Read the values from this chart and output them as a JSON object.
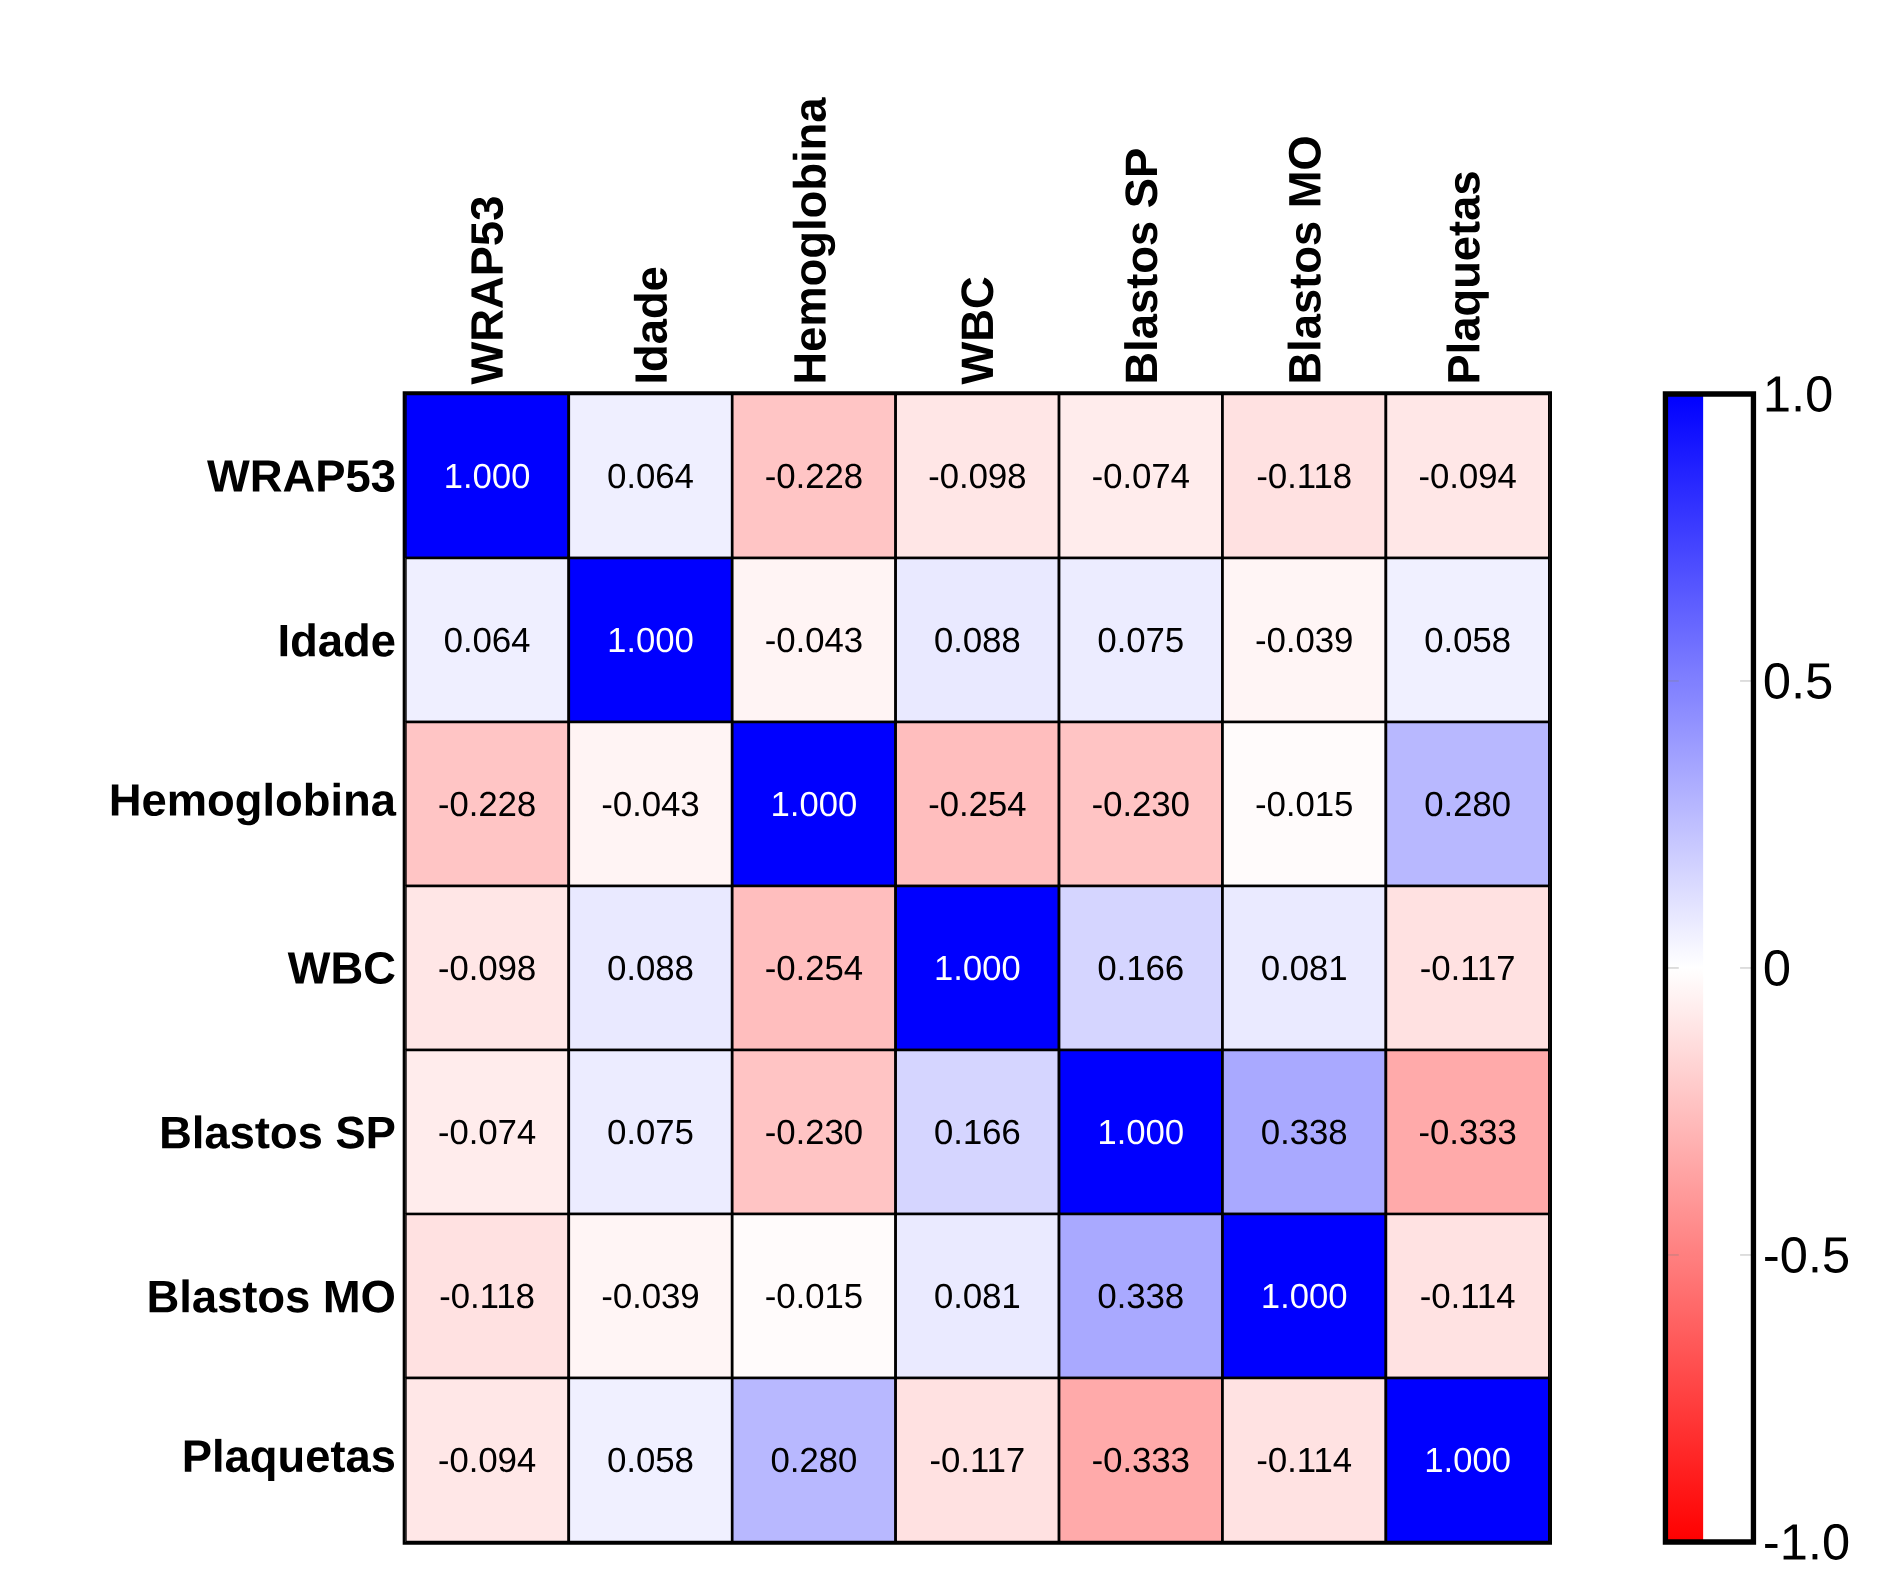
{
  "chart_data": {
    "type": "heatmap",
    "categories": [
      "WRAP53",
      "Idade",
      "Hemoglobina",
      "WBC",
      "Blastos SP",
      "Blastos MO",
      "Plaquetas"
    ],
    "y_categories": [
      "WRAP53",
      "Idade",
      "Hemoglobina",
      "WBC",
      "Blastos SP",
      "Blastos MO",
      "Plaquetas"
    ],
    "cells": [
      [
        1.0,
        0.064,
        -0.228,
        -0.098,
        -0.074,
        -0.118,
        -0.094
      ],
      [
        0.064,
        1.0,
        -0.043,
        0.088,
        0.075,
        -0.039,
        0.058
      ],
      [
        -0.228,
        -0.043,
        1.0,
        -0.254,
        -0.23,
        -0.015,
        0.28
      ],
      [
        -0.098,
        0.088,
        -0.254,
        1.0,
        0.166,
        0.081,
        -0.117
      ],
      [
        -0.074,
        0.075,
        -0.23,
        0.166,
        1.0,
        0.338,
        -0.333
      ],
      [
        -0.118,
        -0.039,
        -0.015,
        0.081,
        0.338,
        1.0,
        -0.114
      ],
      [
        -0.094,
        0.058,
        0.28,
        -0.117,
        -0.333,
        -0.114,
        1.0
      ]
    ],
    "cell_labels": [
      [
        "1.000",
        "0.064",
        "-0.228",
        "-0.098",
        "-0.074",
        "-0.118",
        "-0.094"
      ],
      [
        "0.064",
        "1.000",
        "-0.043",
        "0.088",
        "0.075",
        "-0.039",
        "0.058"
      ],
      [
        "-0.228",
        "-0.043",
        "1.000",
        "-0.254",
        "-0.230",
        "-0.015",
        "0.280"
      ],
      [
        "-0.098",
        "0.088",
        "-0.254",
        "1.000",
        "0.166",
        "0.081",
        "-0.117"
      ],
      [
        "-0.074",
        "0.075",
        "-0.230",
        "0.166",
        "1.000",
        "0.338",
        "-0.333"
      ],
      [
        "-0.118",
        "-0.039",
        "-0.015",
        "0.081",
        "0.338",
        "1.000",
        "-0.114"
      ],
      [
        "-0.094",
        "0.058",
        "0.280",
        "-0.117",
        "-0.333",
        "-0.114",
        "1.000"
      ]
    ],
    "clim": [
      -1,
      1
    ],
    "cticks": [
      {
        "value": -1,
        "label": "-1.0"
      },
      {
        "value": -0.5,
        "label": "-0.5"
      },
      {
        "value": 0,
        "label": "0"
      },
      {
        "value": 0.5,
        "label": "0.5"
      },
      {
        "value": 1,
        "label": "1.0"
      }
    ]
  }
}
